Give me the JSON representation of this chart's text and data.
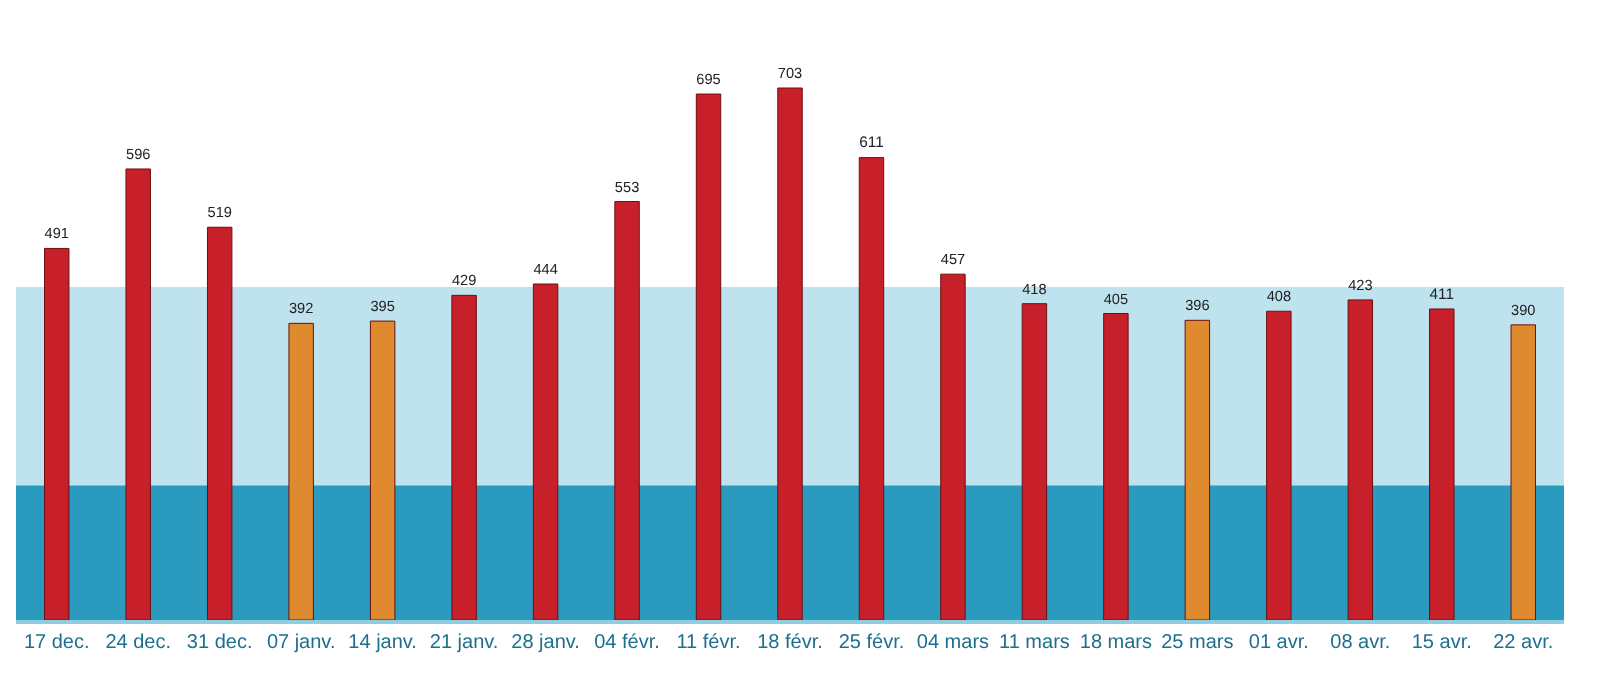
{
  "chart_data": {
    "type": "bar",
    "categories": [
      "17 dec.",
      "24 dec.",
      "31 dec.",
      "07 janv.",
      "14 janv.",
      "21 janv.",
      "28 janv.",
      "04 févr.",
      "11 févr.",
      "18 févr.",
      "25 févr.",
      "04 mars",
      "11 mars",
      "18 mars",
      "25 mars",
      "01 avr.",
      "08 avr.",
      "15 avr.",
      "22 avr."
    ],
    "values": [
      491,
      596,
      519,
      392,
      395,
      429,
      444,
      553,
      695,
      703,
      611,
      457,
      418,
      405,
      396,
      408,
      423,
      411,
      390
    ],
    "colors": [
      "#c8202a",
      "#c8202a",
      "#c8202a",
      "#e08a30",
      "#e08a30",
      "#c8202a",
      "#c8202a",
      "#c8202a",
      "#c8202a",
      "#c8202a",
      "#c8202a",
      "#c8202a",
      "#c8202a",
      "#c8202a",
      "#e08a30",
      "#c8202a",
      "#c8202a",
      "#c8202a",
      "#e08a30"
    ],
    "data_labels": true,
    "tick_labels": "x",
    "grid": false,
    "bands": [
      {
        "axis": "y",
        "from": 0,
        "to": 178,
        "color": "#2a9bbf"
      },
      {
        "axis": "y",
        "from": 178,
        "to": 440,
        "color": "#bfe3ee"
      }
    ]
  }
}
